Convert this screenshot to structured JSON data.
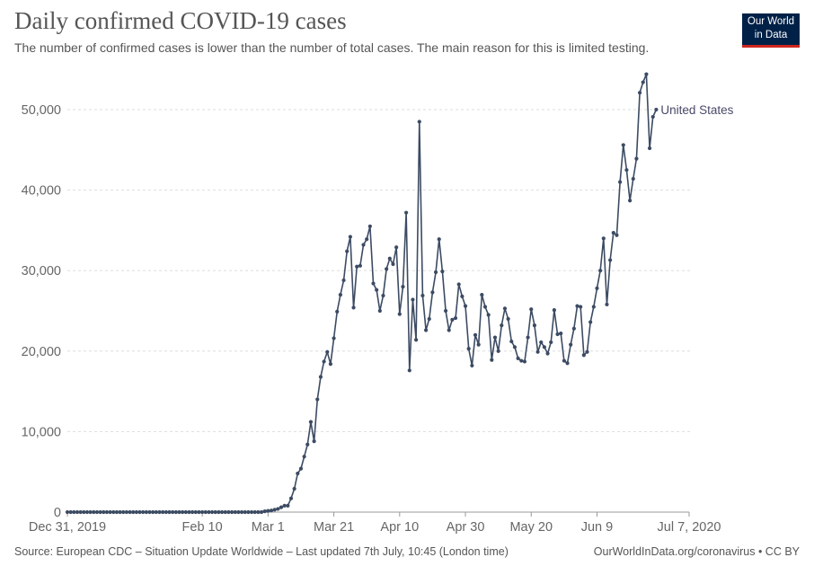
{
  "header": {
    "title": "Daily confirmed COVID-19 cases",
    "subtitle": "The number of confirmed cases is lower than the number of total cases. The main reason for this is limited testing."
  },
  "logo": {
    "line1": "Our World",
    "line2": "in Data"
  },
  "footer": {
    "source": "Source: European CDC – Situation Update Worldwide – Last updated 7th July, 10:45 (London time)",
    "credit": "OurWorldInData.org/coronavirus • CC BY"
  },
  "colors": {
    "series": "#3c4b63",
    "grid": "#dddddd",
    "axis": "#999999",
    "logo_bg": "#002147",
    "logo_accent": "#ce261e"
  },
  "chart_data": {
    "type": "line",
    "title": "Daily confirmed COVID-19 cases",
    "x_type": "date",
    "x_range": [
      "2019-12-31",
      "2020-07-07"
    ],
    "x_ticks": [
      {
        "date": "2019-12-31",
        "label": "Dec 31, 2019"
      },
      {
        "date": "2020-02-10",
        "label": "Feb 10"
      },
      {
        "date": "2020-03-01",
        "label": "Mar 1"
      },
      {
        "date": "2020-03-21",
        "label": "Mar 21"
      },
      {
        "date": "2020-04-10",
        "label": "Apr 10"
      },
      {
        "date": "2020-04-30",
        "label": "Apr 30"
      },
      {
        "date": "2020-05-20",
        "label": "May 20"
      },
      {
        "date": "2020-06-09",
        "label": "Jun 9"
      },
      {
        "date": "2020-07-07",
        "label": "Jul 7, 2020"
      }
    ],
    "ylim": [
      0,
      55000
    ],
    "y_ticks": [
      {
        "value": 0,
        "label": "0"
      },
      {
        "value": 10000,
        "label": "10,000"
      },
      {
        "value": 20000,
        "label": "20,000"
      },
      {
        "value": 30000,
        "label": "30,000"
      },
      {
        "value": 40000,
        "label": "40,000"
      },
      {
        "value": 50000,
        "label": "50,000"
      }
    ],
    "grid": true,
    "series": [
      {
        "name": "United States",
        "start_date": "2019-12-31",
        "zero_days": 60,
        "values": [
          100,
          150,
          200,
          300,
          400,
          600,
          800,
          800,
          1700,
          2900,
          4800,
          5400,
          6900,
          8400,
          11200,
          8800,
          14000,
          16800,
          18700,
          19900,
          18400,
          21600,
          24900,
          27000,
          28800,
          32400,
          34200,
          25400,
          30500,
          30600,
          33200,
          33900,
          35500,
          28400,
          27600,
          25000,
          26900,
          30200,
          31500,
          30800,
          32900,
          24600,
          28000,
          37200,
          17600,
          26400,
          21400,
          48500,
          26900,
          22600,
          24000,
          27300,
          29800,
          33900,
          29900,
          25000,
          22600,
          23900,
          24100,
          28300,
          26800,
          25600,
          20300,
          18200,
          22000,
          20800,
          27000,
          25500,
          24500,
          18900,
          21700,
          20000,
          23200,
          25300,
          24000,
          21200,
          20500,
          19100,
          18800,
          18700,
          21700,
          25200,
          23200,
          19900,
          21100,
          20500,
          19700,
          21100,
          25100,
          22100,
          22200,
          18800,
          18500,
          20800,
          22800,
          25600,
          25500,
          19500,
          19900,
          23600,
          25500,
          27800,
          30000,
          34000,
          25800,
          31300,
          34700,
          34400,
          41000,
          45600,
          42500,
          38700,
          41400,
          43900,
          52100,
          53400,
          54400,
          45200,
          49100,
          50000
        ]
      }
    ]
  }
}
